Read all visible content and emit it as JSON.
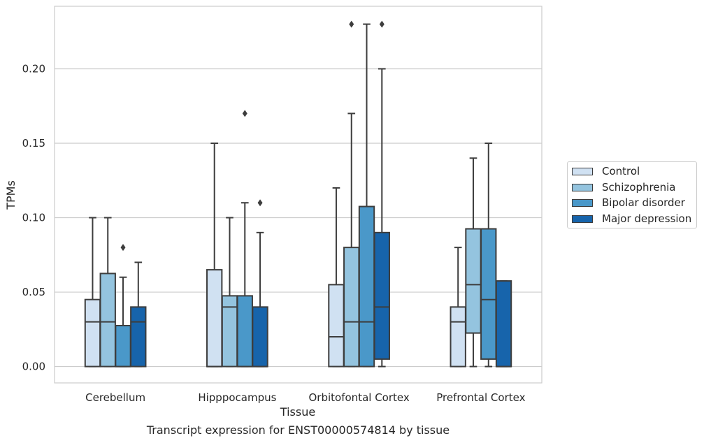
{
  "chart_data": {
    "type": "box",
    "xlabel": "Tissue",
    "ylabel": "TPMs",
    "ylim": [
      -0.011,
      0.242
    ],
    "yticks": [
      0.0,
      0.05,
      0.1,
      0.15,
      0.2
    ],
    "ytick_labels": [
      "0.00",
      "0.05",
      "0.10",
      "0.15",
      "0.20"
    ],
    "grid": "horizontal",
    "legend_position": "right",
    "categories": [
      "Cerebellum",
      "Hipppocampus",
      "Orbitofontal Cortex",
      "Prefrontal Cortex"
    ],
    "series": [
      {
        "name": "Control",
        "color": "#d0e1f2",
        "boxes": [
          {
            "low": 0.0,
            "q1": 0.0,
            "median": 0.03,
            "q3": 0.045,
            "high": 0.1,
            "outliers": []
          },
          {
            "low": 0.0,
            "q1": 0.0,
            "median": 0.0,
            "q3": 0.065,
            "high": 0.15,
            "outliers": []
          },
          {
            "low": 0.0,
            "q1": 0.0,
            "median": 0.02,
            "q3": 0.055,
            "high": 0.12,
            "outliers": []
          },
          {
            "low": 0.0,
            "q1": 0.0,
            "median": 0.03,
            "q3": 0.04,
            "high": 0.08,
            "outliers": []
          }
        ]
      },
      {
        "name": "Schizophrenia",
        "color": "#94c4df",
        "boxes": [
          {
            "low": 0.0,
            "q1": 0.0,
            "median": 0.03,
            "q3": 0.0625,
            "high": 0.1,
            "outliers": []
          },
          {
            "low": 0.0,
            "q1": 0.0,
            "median": 0.04,
            "q3": 0.0475,
            "high": 0.1,
            "outliers": []
          },
          {
            "low": 0.0,
            "q1": 0.0,
            "median": 0.03,
            "q3": 0.08,
            "high": 0.17,
            "outliers": [
              0.23
            ]
          },
          {
            "low": 0.0,
            "q1": 0.0225,
            "median": 0.055,
            "q3": 0.0925,
            "high": 0.14,
            "outliers": []
          }
        ]
      },
      {
        "name": "Bipolar disorder",
        "color": "#4a98c9",
        "boxes": [
          {
            "low": 0.0,
            "q1": 0.0,
            "median": 0.0,
            "q3": 0.0275,
            "high": 0.06,
            "outliers": [
              0.08
            ]
          },
          {
            "low": 0.0,
            "q1": 0.0,
            "median": 0.0,
            "q3": 0.0475,
            "high": 0.11,
            "outliers": [
              0.17
            ]
          },
          {
            "low": 0.0,
            "q1": 0.0,
            "median": 0.03,
            "q3": 0.1075,
            "high": 0.23,
            "outliers": []
          },
          {
            "low": 0.0,
            "q1": 0.005,
            "median": 0.045,
            "q3": 0.0925,
            "high": 0.15,
            "outliers": []
          }
        ]
      },
      {
        "name": "Major depression",
        "color": "#1764ab",
        "boxes": [
          {
            "low": 0.0,
            "q1": 0.0,
            "median": 0.03,
            "q3": 0.04,
            "high": 0.07,
            "outliers": []
          },
          {
            "low": 0.0,
            "q1": 0.0,
            "median": 0.0,
            "q3": 0.04,
            "high": 0.09,
            "outliers": [
              0.11
            ]
          },
          {
            "low": 0.0,
            "q1": 0.005,
            "median": 0.04,
            "q3": 0.09,
            "high": 0.2,
            "outliers": [
              0.23
            ]
          },
          {
            "low": 0.0,
            "q1": 0.0,
            "median": 0.0,
            "q3": 0.0575,
            "high": 0.0575,
            "outliers": []
          }
        ]
      }
    ]
  },
  "caption": "Transcript expression for ENST00000574814 by tissue"
}
